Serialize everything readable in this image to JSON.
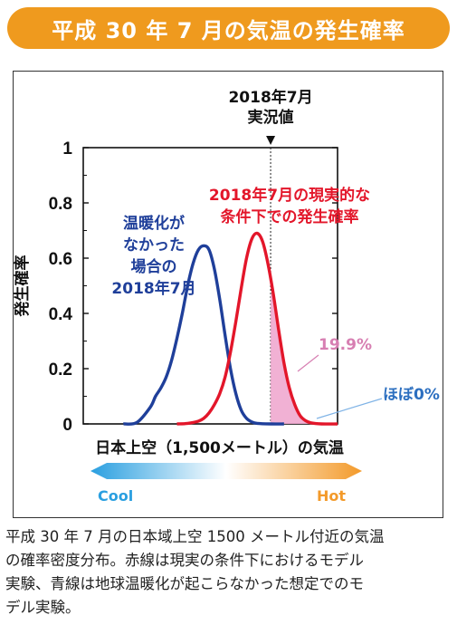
{
  "header": {
    "title": "平成 30 年 7 月の気温の発生確率"
  },
  "chart_data": {
    "type": "line",
    "ylabel": "発生確率",
    "xlabel": "日本上空（1,500メートル）の気温",
    "ylim": [
      0,
      1
    ],
    "yticks": [
      "0",
      "0.2",
      "0.4",
      "0.6",
      "0.8",
      "1"
    ],
    "series": [
      {
        "name": "温暖化が なかった 場合の 2018年7月",
        "label_lines": [
          "温暖化が",
          "なかった",
          "場合の",
          "2018年7月"
        ],
        "color": "#1f3f9a",
        "x": [
          -3.0,
          -2.5,
          -2.0,
          -1.8,
          -1.6,
          -1.4,
          -1.2,
          -1.0,
          -0.8,
          -0.6,
          -0.4,
          -0.2,
          0.0,
          0.2,
          0.4,
          0.6,
          0.8,
          1.0,
          1.2,
          1.4,
          1.6,
          1.8,
          2.0,
          2.5,
          3.0
        ],
        "values": [
          0,
          0.005,
          0.06,
          0.1,
          0.13,
          0.17,
          0.23,
          0.31,
          0.4,
          0.5,
          0.58,
          0.63,
          0.645,
          0.63,
          0.56,
          0.45,
          0.32,
          0.2,
          0.11,
          0.05,
          0.02,
          0.007,
          0.002,
          0,
          0
        ]
      },
      {
        "name": "2018年7月の現実的な 条件下での発生確率",
        "label_lines": [
          "2018年7月の現実的な",
          "条件下での発生確率"
        ],
        "color": "#e3162a",
        "x": [
          -1.0,
          -0.6,
          -0.2,
          0.0,
          0.2,
          0.4,
          0.6,
          0.8,
          1.0,
          1.2,
          1.4,
          1.6,
          1.8,
          2.0,
          2.2,
          2.4,
          2.6,
          2.8,
          3.0,
          3.2,
          3.4,
          3.6,
          3.8,
          4.0,
          4.4,
          5.0
        ],
        "values": [
          0,
          0.002,
          0.01,
          0.02,
          0.04,
          0.07,
          0.11,
          0.17,
          0.26,
          0.37,
          0.49,
          0.6,
          0.67,
          0.69,
          0.66,
          0.58,
          0.47,
          0.34,
          0.22,
          0.13,
          0.07,
          0.03,
          0.012,
          0.004,
          0,
          0
        ]
      }
    ],
    "xlim": [
      -4.5,
      5.0
    ],
    "observed": {
      "x": 2.5,
      "label_lines": [
        "2018年7月",
        "実況値"
      ]
    },
    "annotations": {
      "red_tail": "19.9%",
      "blue_tail": "ほぼ0%"
    },
    "colorbar": {
      "left": "Cool",
      "right": "Hot",
      "left_color": "#2a9fe0",
      "right_color": "#f39a2a"
    }
  },
  "caption_lines": [
    "平成 30 年 7 月の日本域上空 1500 メートル付近の気温",
    "の確率密度分布。赤線は現実の条件下におけるモデル",
    "実験、青線は地球温暖化が起こらなかった想定でのモ",
    "デル実験。"
  ]
}
